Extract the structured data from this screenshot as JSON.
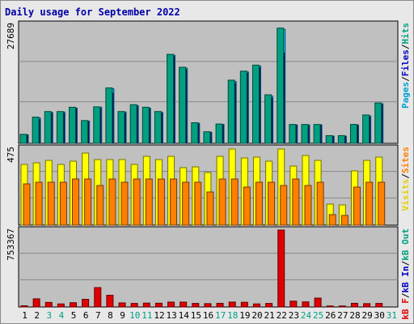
{
  "title": "Daily usage for September 2022",
  "chart_data": {
    "type": "bar",
    "title": "Daily usage for September 2022",
    "days": [
      "1",
      "2",
      "3",
      "4",
      "5",
      "6",
      "7",
      "8",
      "9",
      "10",
      "11",
      "12",
      "13",
      "14",
      "15",
      "16",
      "17",
      "18",
      "19",
      "20",
      "21",
      "22",
      "23",
      "24",
      "25",
      "26",
      "27",
      "28",
      "29",
      "30",
      "31"
    ],
    "weekend_days": [
      3,
      4,
      10,
      11,
      17,
      18,
      24,
      25,
      31
    ],
    "panels": [
      {
        "id": "hits",
        "ymax_label": "27689",
        "ymax": 27689,
        "series": [
          {
            "name": "Hits",
            "color": "#00c0ff",
            "values": [
              2000,
              5900,
              7200,
              7300,
              8200,
              5200,
              8400,
              12700,
              7300,
              8800,
              8200,
              7200,
              20500,
              17500,
              4700,
              2600,
              4400,
              14400,
              16600,
              18000,
              11000,
              26500,
              4300,
              4300,
              4300,
              1700,
              1700,
              4300,
              6400,
              9200,
              0
            ]
          },
          {
            "name": "Files",
            "color": "#0000c0",
            "values": [
              1900,
              5500,
              7000,
              7000,
              8000,
              5000,
              8100,
              11700,
              7000,
              8600,
              8000,
              7000,
              20200,
              17100,
              4500,
              2500,
              4300,
              14000,
              16300,
              17600,
              10500,
              21000,
              4200,
              4100,
              4200,
              1600,
              1600,
              4100,
              6100,
              9000,
              0
            ]
          },
          {
            "name": "Pages",
            "color": "#00a080",
            "values": [
              2100,
              6100,
              7400,
              7400,
              8400,
              5300,
              8500,
              12900,
              7400,
              9000,
              8400,
              7400,
              20700,
              17700,
              4800,
              2700,
              4500,
              14700,
              16800,
              18200,
              11300,
              26800,
              4400,
              4400,
              4400,
              1800,
              1800,
              4400,
              6600,
              9400,
              0
            ]
          }
        ],
        "right_label": [
          "Pages",
          "/",
          "Files",
          "/",
          "Hits"
        ],
        "right_colors": [
          "#00a0d0",
          "#000000",
          "#0000c0",
          "#000000",
          "#00a080"
        ]
      },
      {
        "id": "visits",
        "ymax_label": "475",
        "ymax": 475,
        "series": [
          {
            "name": "Visits",
            "color": "#ffff00",
            "values": [
              375,
              385,
              400,
              375,
              395,
              445,
              405,
              405,
              405,
              375,
              425,
              405,
              425,
              355,
              360,
              325,
              425,
              470,
              415,
              420,
              395,
              470,
              365,
              430,
              400,
              130,
              125,
              335,
              400,
              420,
              0
            ]
          },
          {
            "name": "Sites",
            "color": "#ff8000",
            "values": [
              255,
              265,
              265,
              265,
              285,
              285,
              245,
              285,
              265,
              285,
              285,
              285,
              285,
              265,
              265,
              205,
              285,
              285,
              235,
              265,
              265,
              245,
              285,
              245,
              265,
              65,
              60,
              235,
              265,
              265,
              0
            ]
          }
        ],
        "right_label": [
          "Visits",
          "/",
          "Sites"
        ],
        "right_colors": [
          "#e0d000",
          "#000000",
          "#ff8000"
        ]
      },
      {
        "id": "kbytes",
        "ymax_label": "753367",
        "ymax": 753367,
        "series": [
          {
            "name": "KBytes",
            "color": "#e00000",
            "values": [
              12000,
              80000,
              45000,
              30000,
              42000,
              75000,
              190000,
              115000,
              40000,
              35000,
              38000,
              37000,
              48000,
              48000,
              35000,
              33000,
              36000,
              48000,
              46000,
              30000,
              35000,
              753367,
              57000,
              50000,
              87000,
              10000,
              10000,
              36000,
              33000,
              35000,
              0
            ]
          }
        ],
        "right_label": [
          "kB",
          " F",
          "/",
          "kB In",
          "/",
          "kB Out"
        ],
        "right_colors": [
          "#e00000",
          "#e00000",
          "#000000",
          "#0000c0",
          "#000000",
          "#00a080"
        ]
      }
    ]
  }
}
